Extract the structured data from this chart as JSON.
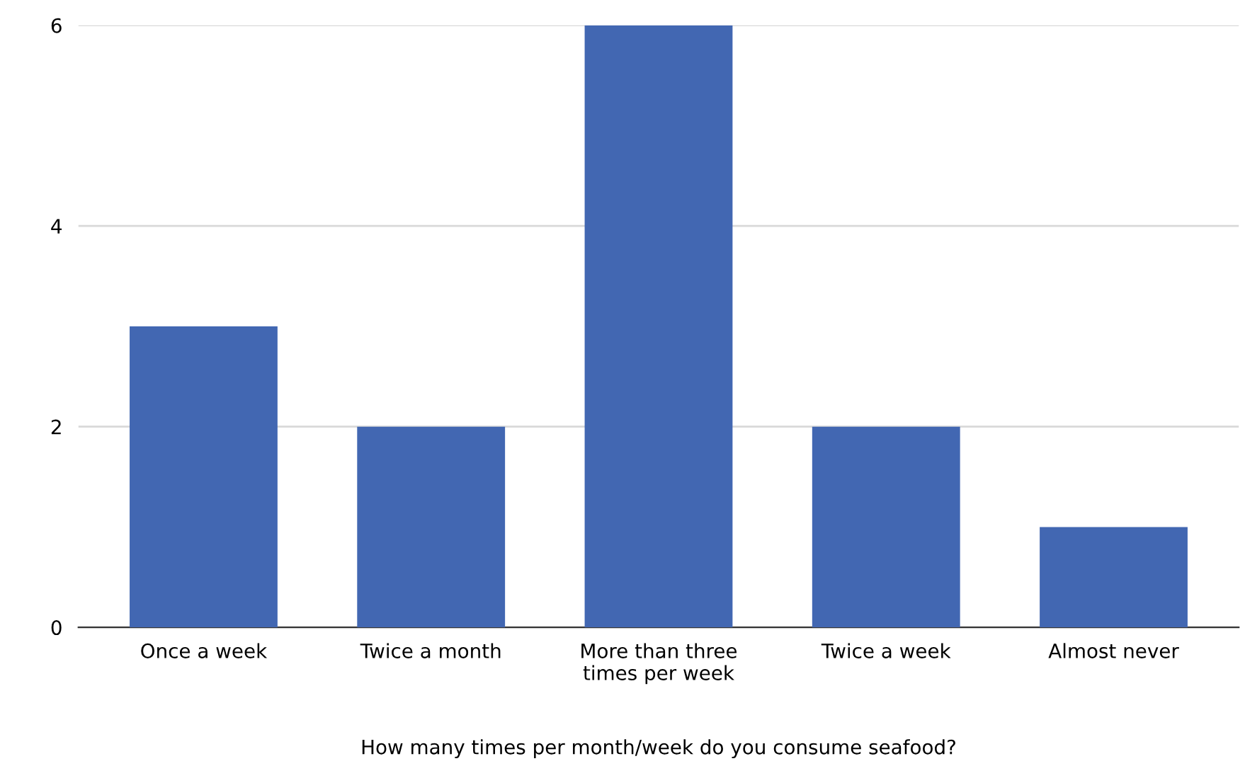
{
  "chart_data": {
    "type": "bar",
    "categories": [
      "Once a week",
      "Twice a month",
      "More than three\ntimes per week",
      "Twice a week",
      "Almost never"
    ],
    "values": [
      3,
      2,
      6,
      2,
      1
    ],
    "color": "#4267b2",
    "xlabel": "How many times per month/week do you consume seafood?",
    "ylim": [
      0,
      6
    ],
    "yticks": [
      0,
      2,
      4,
      6
    ],
    "grid": "y"
  }
}
